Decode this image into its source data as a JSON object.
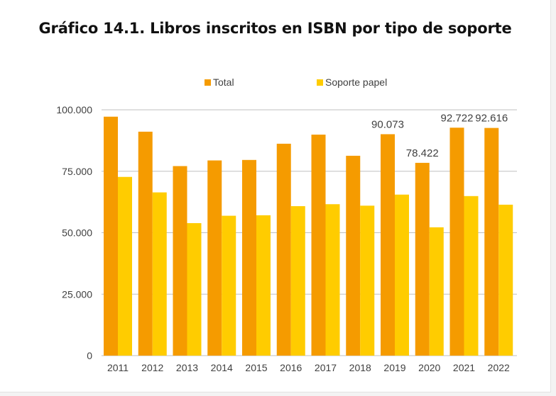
{
  "colors": {
    "total": "#f59b00",
    "papel": "#ffcc00",
    "grid": "#bfbfbf",
    "text": "#404040",
    "title": "#111111"
  },
  "chart_data": {
    "type": "bar",
    "title": "Gráfico 14.1. Libros inscritos en ISBN por tipo de soporte",
    "xlabel": "",
    "ylabel": "",
    "ylim": [
      0,
      100000
    ],
    "yticks": [
      "0",
      "25.000",
      "50.000",
      "75.000",
      "100.000"
    ],
    "grid": true,
    "legend_position": "top",
    "categories": [
      "2011",
      "2012",
      "2013",
      "2014",
      "2015",
      "2016",
      "2017",
      "2018",
      "2019",
      "2020",
      "2021",
      "2022"
    ],
    "series": [
      {
        "name": "Total",
        "values": [
          97200,
          91100,
          77100,
          79400,
          79600,
          86200,
          89900,
          81300,
          90073,
          78422,
          92722,
          92616
        ],
        "data_labels": [
          "",
          "",
          "",
          "",
          "",
          "",
          "",
          "",
          "90.073",
          "78.422",
          "92.722",
          "92.616"
        ]
      },
      {
        "name": "Soporte papel",
        "values": [
          72700,
          66400,
          53900,
          56900,
          57100,
          60800,
          61600,
          61000,
          65500,
          52200,
          64900,
          61400
        ]
      }
    ]
  }
}
